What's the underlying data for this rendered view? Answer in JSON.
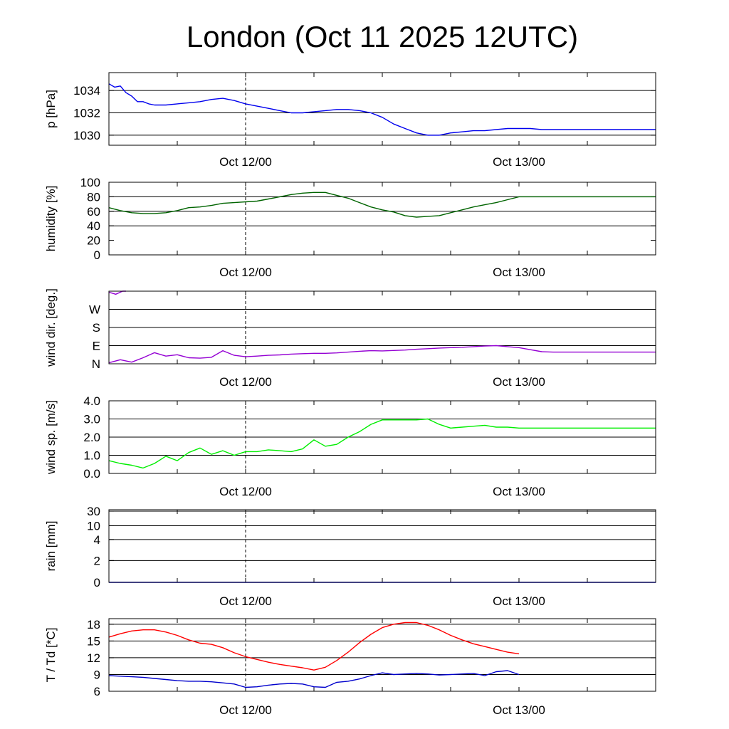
{
  "title": "London (Oct 11 2025 12UTC)",
  "colors": {
    "pressure": "#0000ee",
    "humidity": "#006400",
    "wind_dir": "#9400d3",
    "wind_speed": "#00ee00",
    "rain": "#0000ff",
    "temperature": "#ff0000",
    "dewpoint": "#0000cc",
    "grid": "#000000"
  },
  "chart_data": [
    {
      "type": "line",
      "ylabel": "p [hPa]",
      "x_tick_labels": [
        "Oct 12/00",
        "Oct 13/00"
      ],
      "x_ticks_hours": [
        12,
        36
      ],
      "marker_hours": 12,
      "xlim": [
        0,
        48
      ],
      "ylim": [
        1029.1,
        1035.6
      ],
      "y_ticks": [
        1030,
        1032,
        1034
      ],
      "y_tick_labels": [
        "1030",
        "1032",
        "1034"
      ],
      "gridlines": [
        1030,
        1032,
        1034
      ],
      "series": [
        {
          "color_key": "pressure",
          "x": [
            0,
            0.5,
            1,
            1.5,
            2,
            2.5,
            3,
            3.5,
            4,
            5,
            6,
            7,
            8,
            9,
            10,
            11,
            12,
            13,
            14,
            15,
            16,
            17,
            18,
            19,
            20,
            21,
            22,
            23,
            24,
            25,
            26,
            27,
            28,
            29,
            30,
            31,
            32,
            33,
            34,
            35,
            36,
            37,
            38,
            39,
            40,
            41,
            42,
            43,
            44,
            45,
            46,
            47,
            48
          ],
          "y": [
            1034.6,
            1034.3,
            1034.4,
            1033.8,
            1033.5,
            1033.0,
            1033.0,
            1032.8,
            1032.7,
            1032.7,
            1032.8,
            1032.9,
            1033.0,
            1033.2,
            1033.3,
            1033.1,
            1032.8,
            1032.6,
            1032.4,
            1032.2,
            1032.0,
            1032.0,
            1032.1,
            1032.2,
            1032.3,
            1032.3,
            1032.2,
            1032.0,
            1031.6,
            1031.0,
            1030.6,
            1030.2,
            1030.0,
            1030.0,
            1030.2,
            1030.3,
            1030.4,
            1030.4,
            1030.5,
            1030.6,
            1030.6,
            1030.6,
            1030.5,
            1030.5,
            1030.5,
            1030.5,
            1030.5,
            1030.5,
            1030.5,
            1030.5,
            1030.5,
            1030.5,
            1030.5
          ]
        }
      ]
    },
    {
      "type": "line",
      "ylabel": "humidity [%]",
      "x_tick_labels": [
        "Oct 12/00",
        "Oct 13/00"
      ],
      "x_ticks_hours": [
        12,
        36
      ],
      "marker_hours": 12,
      "xlim": [
        0,
        48
      ],
      "ylim": [
        0,
        100
      ],
      "y_ticks": [
        0,
        20,
        40,
        60,
        80,
        100
      ],
      "y_tick_labels": [
        "0",
        "20",
        "40",
        "60",
        "80",
        "100"
      ],
      "gridlines": [
        40,
        60,
        80
      ],
      "series": [
        {
          "color_key": "humidity",
          "x": [
            0,
            1,
            2,
            3,
            4,
            5,
            6,
            7,
            8,
            9,
            10,
            11,
            12,
            13,
            14,
            15,
            16,
            17,
            18,
            19,
            20,
            21,
            22,
            23,
            24,
            25,
            26,
            27,
            28,
            29,
            30,
            31,
            32,
            33,
            34,
            35,
            36,
            37,
            38,
            39,
            40,
            41,
            42,
            43,
            44,
            45,
            46,
            47,
            48
          ],
          "y": [
            65,
            61,
            58,
            57,
            57,
            58,
            61,
            65,
            66,
            68,
            71,
            72,
            73,
            74,
            77,
            80,
            83,
            85,
            86,
            86,
            82,
            78,
            72,
            66,
            62,
            59,
            54,
            52,
            53,
            54,
            58,
            62,
            66,
            69,
            72,
            76,
            80,
            80,
            80,
            80,
            80,
            80,
            80,
            80,
            80,
            80,
            80,
            80,
            80
          ]
        }
      ]
    },
    {
      "type": "line",
      "ylabel": "wind dir. [deg.]",
      "x_tick_labels": [
        "Oct 12/00",
        "Oct 13/00"
      ],
      "x_ticks_hours": [
        12,
        36
      ],
      "marker_hours": 12,
      "xlim": [
        0,
        48
      ],
      "ylim": [
        0,
        360
      ],
      "y_ticks": [
        0,
        90,
        180,
        270
      ],
      "y_tick_labels": [
        "N",
        "E",
        "S",
        "W"
      ],
      "gridlines": [
        90,
        180,
        270
      ],
      "series": [
        {
          "color_key": "wind_dir",
          "x": [
            0,
            0.6,
            1.2,
            1.5
          ],
          "y": [
            355,
            345,
            360,
            360
          ]
        },
        {
          "color_key": "wind_dir",
          "x": [
            0,
            1,
            2,
            3,
            4,
            5,
            6,
            7,
            8,
            9,
            10,
            11,
            12,
            13,
            14,
            15,
            16,
            17,
            18,
            19,
            20,
            21,
            22,
            23,
            24,
            25,
            26,
            27,
            28,
            29,
            30,
            31,
            32,
            33,
            34,
            35,
            36,
            37,
            38,
            39,
            40,
            41,
            42,
            43,
            44,
            45,
            46,
            47,
            48
          ],
          "y": [
            5,
            20,
            8,
            30,
            55,
            38,
            45,
            30,
            28,
            32,
            65,
            42,
            35,
            38,
            42,
            44,
            48,
            50,
            52,
            52,
            54,
            58,
            62,
            65,
            64,
            66,
            68,
            72,
            75,
            78,
            80,
            82,
            85,
            88,
            90,
            85,
            80,
            70,
            60,
            58,
            58,
            58,
            58,
            58,
            58,
            58,
            58,
            58,
            58
          ]
        }
      ]
    },
    {
      "type": "line",
      "ylabel": "wind sp. [m/s]",
      "x_tick_labels": [
        "Oct 12/00",
        "Oct 13/00"
      ],
      "x_ticks_hours": [
        12,
        36
      ],
      "marker_hours": 12,
      "xlim": [
        0,
        48
      ],
      "ylim": [
        0,
        4
      ],
      "y_ticks": [
        0,
        1,
        2,
        3,
        4
      ],
      "y_tick_labels": [
        "0.0",
        "1.0",
        "2.0",
        "3.0",
        "4.0"
      ],
      "gridlines": [
        1,
        2,
        3
      ],
      "series": [
        {
          "color_key": "wind_speed",
          "x": [
            0,
            1,
            2,
            3,
            4,
            5,
            6,
            7,
            8,
            9,
            10,
            11,
            12,
            13,
            14,
            15,
            16,
            17,
            18,
            19,
            20,
            21,
            22,
            23,
            24,
            25,
            26,
            27,
            28,
            29,
            30,
            31,
            32,
            33,
            34,
            35,
            36,
            37,
            38,
            39,
            40,
            41,
            42,
            43,
            44,
            45,
            46,
            47,
            48
          ],
          "y": [
            0.7,
            0.55,
            0.45,
            0.3,
            0.55,
            0.95,
            0.7,
            1.15,
            1.4,
            1.05,
            1.25,
            1.0,
            1.2,
            1.2,
            1.3,
            1.25,
            1.2,
            1.35,
            1.85,
            1.5,
            1.6,
            2.0,
            2.3,
            2.7,
            2.95,
            2.95,
            2.95,
            2.95,
            3.0,
            2.7,
            2.5,
            2.55,
            2.6,
            2.65,
            2.55,
            2.55,
            2.5,
            2.5,
            2.5,
            2.5,
            2.5,
            2.5,
            2.5,
            2.5,
            2.5,
            2.5,
            2.5,
            2.5,
            2.5
          ]
        }
      ]
    },
    {
      "type": "line",
      "ylabel": "rain [mm]",
      "x_tick_labels": [
        "Oct 12/00",
        "Oct 13/00"
      ],
      "x_ticks_hours": [
        12,
        36
      ],
      "marker_hours": 12,
      "xlim": [
        0,
        48
      ],
      "scale": "nonlinear",
      "y_ticks": [
        0,
        2,
        4,
        10,
        30
      ],
      "y_tick_labels": [
        "0",
        "2",
        "4",
        "10",
        "30"
      ],
      "gridlines": [
        2,
        4,
        10,
        30
      ],
      "series": [
        {
          "color_key": "rain",
          "x": [
            0,
            48
          ],
          "y": [
            0,
            0
          ]
        }
      ]
    },
    {
      "type": "line",
      "ylabel": "T / Td [*C]",
      "x_tick_labels": [
        "Oct 12/00",
        "Oct 13/00"
      ],
      "x_ticks_hours": [
        12,
        36
      ],
      "marker_hours": 12,
      "xlim": [
        0,
        48
      ],
      "ylim": [
        6,
        19
      ],
      "y_ticks": [
        6,
        9,
        12,
        15,
        18
      ],
      "y_tick_labels": [
        "6",
        "9",
        "12",
        "15",
        "18"
      ],
      "gridlines": [
        9,
        12,
        15,
        18
      ],
      "series": [
        {
          "name": "T",
          "color_key": "temperature",
          "x": [
            0,
            1,
            2,
            3,
            4,
            5,
            6,
            7,
            8,
            9,
            10,
            11,
            12,
            13,
            14,
            15,
            16,
            17,
            18,
            19,
            20,
            21,
            22,
            23,
            24,
            25,
            26,
            27,
            28,
            29,
            30,
            31,
            32,
            33,
            34,
            35,
            36
          ],
          "y": [
            15.7,
            16.3,
            16.8,
            17.0,
            17.0,
            16.6,
            16.0,
            15.2,
            14.6,
            14.4,
            13.8,
            12.9,
            12.2,
            11.7,
            11.2,
            10.8,
            10.5,
            10.2,
            9.8,
            10.3,
            11.5,
            13.0,
            14.7,
            16.2,
            17.4,
            18.0,
            18.3,
            18.3,
            17.8,
            17.0,
            16.0,
            15.2,
            14.5,
            14.0,
            13.5,
            13.0,
            12.7
          ]
        },
        {
          "name": "Td",
          "color_key": "dewpoint",
          "x": [
            0,
            1,
            2,
            3,
            4,
            5,
            6,
            7,
            8,
            9,
            10,
            11,
            12,
            13,
            14,
            15,
            16,
            17,
            18,
            19,
            20,
            21,
            22,
            23,
            24,
            25,
            26,
            27,
            28,
            29,
            30,
            31,
            32,
            33,
            34,
            35,
            36
          ],
          "y": [
            8.8,
            8.7,
            8.6,
            8.5,
            8.3,
            8.1,
            7.9,
            7.8,
            7.8,
            7.7,
            7.5,
            7.3,
            6.7,
            6.8,
            7.1,
            7.3,
            7.4,
            7.3,
            6.8,
            6.7,
            7.6,
            7.8,
            8.2,
            8.8,
            9.3,
            9.0,
            9.1,
            9.2,
            9.1,
            8.9,
            9.0,
            9.1,
            9.2,
            8.8,
            9.5,
            9.7,
            9.0
          ]
        }
      ]
    }
  ]
}
